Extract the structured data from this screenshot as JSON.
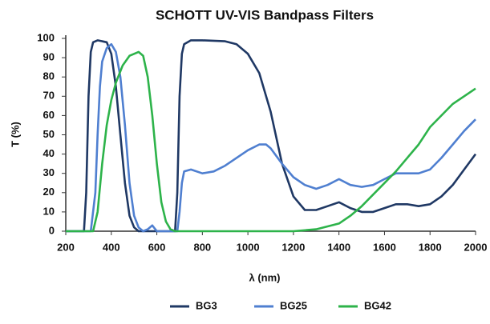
{
  "chart_data": {
    "type": "line",
    "title": "SCHOTT UV-VIS Bandpass Filters",
    "x_label": "λ (nm)",
    "y_label": "T (%)",
    "xlim": [
      200,
      2000
    ],
    "xticks": [
      200,
      400,
      600,
      800,
      1000,
      1200,
      1400,
      1600,
      1800,
      2000
    ],
    "ylim": [
      0,
      100
    ],
    "yticks": [
      0,
      10,
      20,
      30,
      40,
      50,
      60,
      70,
      80,
      90,
      100
    ],
    "grid": false,
    "legend": "bottom",
    "series": [
      {
        "name": "BG3",
        "color": "#1f3864",
        "x": [
          200,
          280,
          290,
          300,
          310,
          320,
          340,
          380,
          400,
          420,
          440,
          460,
          480,
          500,
          520,
          680,
          690,
          700,
          710,
          720,
          750,
          800,
          900,
          950,
          1000,
          1050,
          1100,
          1150,
          1200,
          1250,
          1300,
          1350,
          1400,
          1450,
          1500,
          1550,
          1600,
          1650,
          1700,
          1750,
          1800,
          1850,
          1900,
          1950,
          2000
        ],
        "values": [
          0,
          0,
          20,
          70,
          93,
          98,
          99,
          98,
          92,
          75,
          50,
          25,
          8,
          2,
          0,
          0,
          20,
          70,
          92,
          97,
          99,
          99,
          98.5,
          97,
          92,
          82,
          62,
          35,
          18,
          11,
          11,
          13,
          15,
          12,
          10,
          10,
          12,
          14,
          14,
          13,
          14,
          18,
          24,
          32,
          40
        ]
      },
      {
        "name": "BG25",
        "color": "#4f7fd0",
        "x": [
          200,
          310,
          330,
          340,
          350,
          360,
          380,
          400,
          420,
          440,
          460,
          480,
          500,
          520,
          540,
          560,
          580,
          600,
          690,
          700,
          710,
          720,
          750,
          800,
          850,
          900,
          950,
          1000,
          1050,
          1080,
          1100,
          1150,
          1200,
          1250,
          1300,
          1350,
          1400,
          1450,
          1500,
          1550,
          1600,
          1650,
          1700,
          1750,
          1800,
          1850,
          1900,
          1950,
          2000
        ],
        "values": [
          0,
          0,
          20,
          50,
          75,
          88,
          95,
          97,
          93,
          80,
          55,
          25,
          8,
          2,
          0,
          1,
          3,
          0,
          0,
          10,
          25,
          31,
          32,
          30,
          31,
          34,
          38,
          42,
          45,
          45,
          43,
          35,
          28,
          24,
          22,
          24,
          27,
          24,
          23,
          24,
          27,
          30,
          30,
          30,
          32,
          38,
          45,
          52,
          58
        ]
      },
      {
        "name": "BG42",
        "color": "#2db34a",
        "x": [
          200,
          320,
          340,
          360,
          380,
          400,
          420,
          450,
          480,
          500,
          520,
          540,
          560,
          580,
          600,
          620,
          640,
          660,
          680,
          1200,
          1300,
          1400,
          1450,
          1500,
          1550,
          1600,
          1650,
          1700,
          1750,
          1800,
          1850,
          1900,
          1950,
          2000
        ],
        "values": [
          0,
          0,
          10,
          35,
          55,
          68,
          77,
          86,
          91,
          92,
          93,
          91,
          80,
          60,
          35,
          15,
          5,
          1,
          0,
          0,
          1,
          4,
          8,
          13,
          19,
          25,
          31,
          38,
          45,
          54,
          60,
          66,
          70,
          74
        ]
      }
    ]
  }
}
